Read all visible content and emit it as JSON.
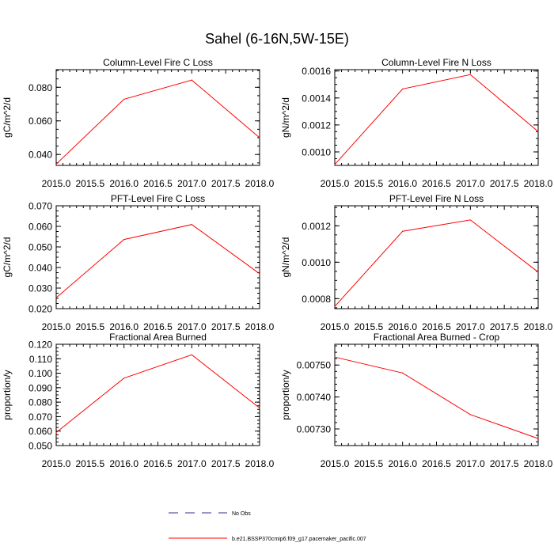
{
  "title": "Sahel (6-16N,5W-15E)",
  "legend": {
    "entries": [
      {
        "label": "No Obs",
        "color": "#3d2a8f",
        "dash": true
      },
      {
        "label": "b.e21.BSSP370cmip6.f09_g17.pacemaker_pacific.007",
        "color": "#ff0000",
        "dash": false
      }
    ]
  },
  "chart_data": [
    {
      "type": "line",
      "title": "Column-Level Fire C Loss",
      "ylabel": "gC/m^2/d",
      "x": [
        2015.0,
        2016.0,
        2017.0,
        2018.0
      ],
      "xlim": [
        2015.0,
        2018.0
      ],
      "xticks": [
        "2015.0",
        "2015.5",
        "2016.0",
        "2016.5",
        "2017.0",
        "2017.5",
        "2018.0"
      ],
      "ylim": [
        0.0335,
        0.0905
      ],
      "yticks": [
        0.04,
        0.06,
        0.08
      ],
      "ytick_labels": [
        "0.040",
        "0.060",
        "0.080"
      ],
      "yminor": 0.005,
      "series": [
        {
          "values": [
            0.0343,
            0.0729,
            0.0843,
            0.05
          ],
          "color": "#ff0000"
        }
      ]
    },
    {
      "type": "line",
      "title": "Column-Level Fire N Loss",
      "ylabel": "gN/m^2/d",
      "x": [
        2015.0,
        2016.0,
        2017.0,
        2018.0
      ],
      "xlim": [
        2015.0,
        2018.0
      ],
      "xticks": [
        "2015.0",
        "2015.5",
        "2016.0",
        "2016.5",
        "2017.0",
        "2017.5",
        "2018.0"
      ],
      "ylim": [
        0.0009,
        0.00161
      ],
      "yticks": [
        0.001,
        0.0012,
        0.0014,
        0.0016
      ],
      "ytick_labels": [
        "0.0010",
        "0.0012",
        "0.0014",
        "0.0016"
      ],
      "yminor": 5e-05,
      "series": [
        {
          "values": [
            0.000907,
            0.001467,
            0.001573,
            0.001151
          ],
          "color": "#ff0000"
        }
      ]
    },
    {
      "type": "line",
      "title": "PFT-Level Fire C Loss",
      "ylabel": "gC/m^2/d",
      "x": [
        2015.0,
        2016.0,
        2017.0,
        2018.0
      ],
      "xlim": [
        2015.0,
        2018.0
      ],
      "xticks": [
        "2015.0",
        "2015.5",
        "2016.0",
        "2016.5",
        "2017.0",
        "2017.5",
        "2018.0"
      ],
      "ylim": [
        0.02,
        0.07
      ],
      "yticks": [
        0.02,
        0.03,
        0.04,
        0.05,
        0.06,
        0.07
      ],
      "ytick_labels": [
        "0.020",
        "0.030",
        "0.040",
        "0.050",
        "0.060",
        "0.070"
      ],
      "yminor": 0.0025,
      "series": [
        {
          "values": [
            0.0253,
            0.0536,
            0.0609,
            0.037
          ],
          "color": "#ff0000"
        }
      ]
    },
    {
      "type": "line",
      "title": "PFT-Level Fire N Loss",
      "ylabel": "gN/m^2/d",
      "x": [
        2015.0,
        2016.0,
        2017.0,
        2018.0
      ],
      "xlim": [
        2015.0,
        2018.0
      ],
      "xticks": [
        "2015.0",
        "2015.5",
        "2016.0",
        "2016.5",
        "2017.0",
        "2017.5",
        "2018.0"
      ],
      "ylim": [
        0.000745,
        0.00131
      ],
      "yticks": [
        0.0008,
        0.001,
        0.0012
      ],
      "ytick_labels": [
        "0.0008",
        "0.0010",
        "0.0012"
      ],
      "yminor": 5e-05,
      "series": [
        {
          "values": [
            0.000757,
            0.00117,
            0.001232,
            0.000946
          ],
          "color": "#ff0000"
        }
      ]
    },
    {
      "type": "line",
      "title": "Fractional Area Burned",
      "ylabel": "proportion/y",
      "x": [
        2015.0,
        2016.0,
        2017.0,
        2018.0
      ],
      "xlim": [
        2015.0,
        2018.0
      ],
      "xticks": [
        "2015.0",
        "2015.5",
        "2016.0",
        "2016.5",
        "2017.0",
        "2017.5",
        "2018.0"
      ],
      "ylim": [
        0.05,
        0.12
      ],
      "yticks": [
        0.05,
        0.06,
        0.07,
        0.08,
        0.09,
        0.1,
        0.11,
        0.12
      ],
      "ytick_labels": [
        "0.050",
        "0.060",
        "0.070",
        "0.080",
        "0.090",
        "0.100",
        "0.110",
        "0.120"
      ],
      "yminor": 0.0025,
      "series": [
        {
          "values": [
            0.059,
            0.0966,
            0.1127,
            0.076
          ],
          "color": "#ff0000"
        }
      ]
    },
    {
      "type": "line",
      "title": "Fractional Area Burned - Crop",
      "ylabel": "proportion/y",
      "x": [
        2015.0,
        2016.0,
        2017.0,
        2018.0
      ],
      "xlim": [
        2015.0,
        2018.0
      ],
      "xticks": [
        "2015.0",
        "2015.5",
        "2016.0",
        "2016.5",
        "2017.0",
        "2017.5",
        "2018.0"
      ],
      "ylim": [
        0.007248,
        0.007565
      ],
      "yticks": [
        0.0073,
        0.0074,
        0.0075
      ],
      "ytick_labels": [
        "0.00730",
        "0.00740",
        "0.00750"
      ],
      "yminor": 2e-05,
      "series": [
        {
          "values": [
            0.007525,
            0.007475,
            0.007345,
            0.00727
          ],
          "color": "#ff0000"
        }
      ]
    }
  ]
}
